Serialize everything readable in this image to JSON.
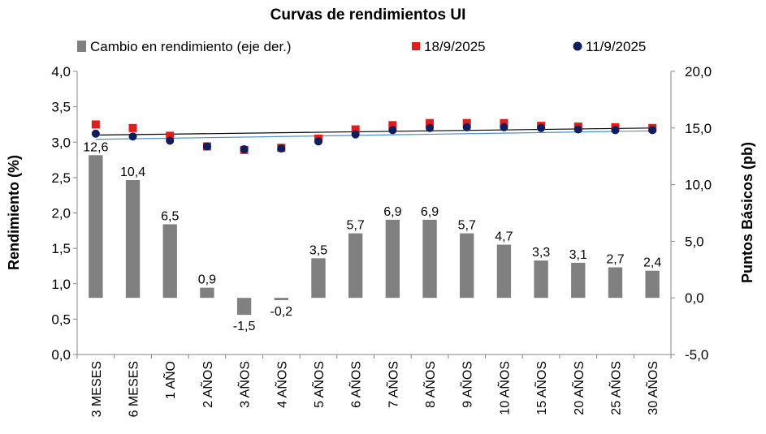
{
  "chart_data": {
    "type": "bar+scatter",
    "title": "Curvas de rendimientos UI",
    "categories": [
      "3 MESES",
      "6 MESES",
      "1 AÑO",
      "2 AÑOS",
      "3 AÑOS",
      "4 AÑOS",
      "5 AÑOS",
      "6 AÑOS",
      "7 AÑOS",
      "8 AÑOS",
      "9 AÑOS",
      "10 AÑOS",
      "15 AÑOS",
      "20 AÑOS",
      "25 AÑOS",
      "30 AÑOS"
    ],
    "bar_series": {
      "name": "Cambio en rendimiento (eje der.)",
      "axis": "right",
      "color": "#808080",
      "values": [
        12.6,
        10.4,
        6.5,
        0.9,
        -1.5,
        -0.2,
        3.5,
        5.7,
        6.9,
        6.9,
        5.7,
        4.7,
        3.3,
        3.1,
        2.7,
        2.4
      ],
      "labels": [
        "12,6",
        "10,4",
        "6,5",
        "0,9",
        "-1,5",
        "-0,2",
        "3,5",
        "5,7",
        "6,9",
        "6,9",
        "5,7",
        "4,7",
        "3,3",
        "3,1",
        "2,7",
        "2,4"
      ]
    },
    "scatter_series": [
      {
        "name": "18/9/2025",
        "axis": "left",
        "marker": "square",
        "color": "#e31b1b",
        "values": [
          3.25,
          3.2,
          3.09,
          2.94,
          2.89,
          2.92,
          3.05,
          3.18,
          3.24,
          3.27,
          3.27,
          3.27,
          3.23,
          3.22,
          3.21,
          3.2
        ]
      },
      {
        "name": "11/9/2025",
        "axis": "left",
        "marker": "circle",
        "color": "#0d1f5c",
        "values": [
          3.12,
          3.08,
          3.02,
          2.94,
          2.9,
          2.91,
          3.01,
          3.11,
          3.17,
          3.2,
          3.21,
          3.21,
          3.2,
          3.18,
          3.17,
          3.17
        ]
      }
    ],
    "trend_lines": [
      {
        "series": "18/9/2025",
        "color": "#000000",
        "start": 3.1,
        "end": 3.2
      },
      {
        "series": "11/9/2025",
        "color": "#4a90c8",
        "start": 3.04,
        "end": 3.16
      }
    ],
    "left_axis": {
      "title": "Rendimiento (%)",
      "min": 0,
      "max": 4,
      "step": 0.5,
      "tick_labels": [
        "0,0",
        "0,5",
        "1,0",
        "1,5",
        "2,0",
        "2,5",
        "3,0",
        "3,5",
        "4,0"
      ]
    },
    "right_axis": {
      "title": "Puntos Básicos (pb)",
      "min": -5,
      "max": 20,
      "step": 5,
      "tick_labels": [
        "-5,0",
        "0,0",
        "5,0",
        "10,0",
        "15,0",
        "20,0"
      ]
    },
    "grid": false,
    "legend_position": "top"
  }
}
